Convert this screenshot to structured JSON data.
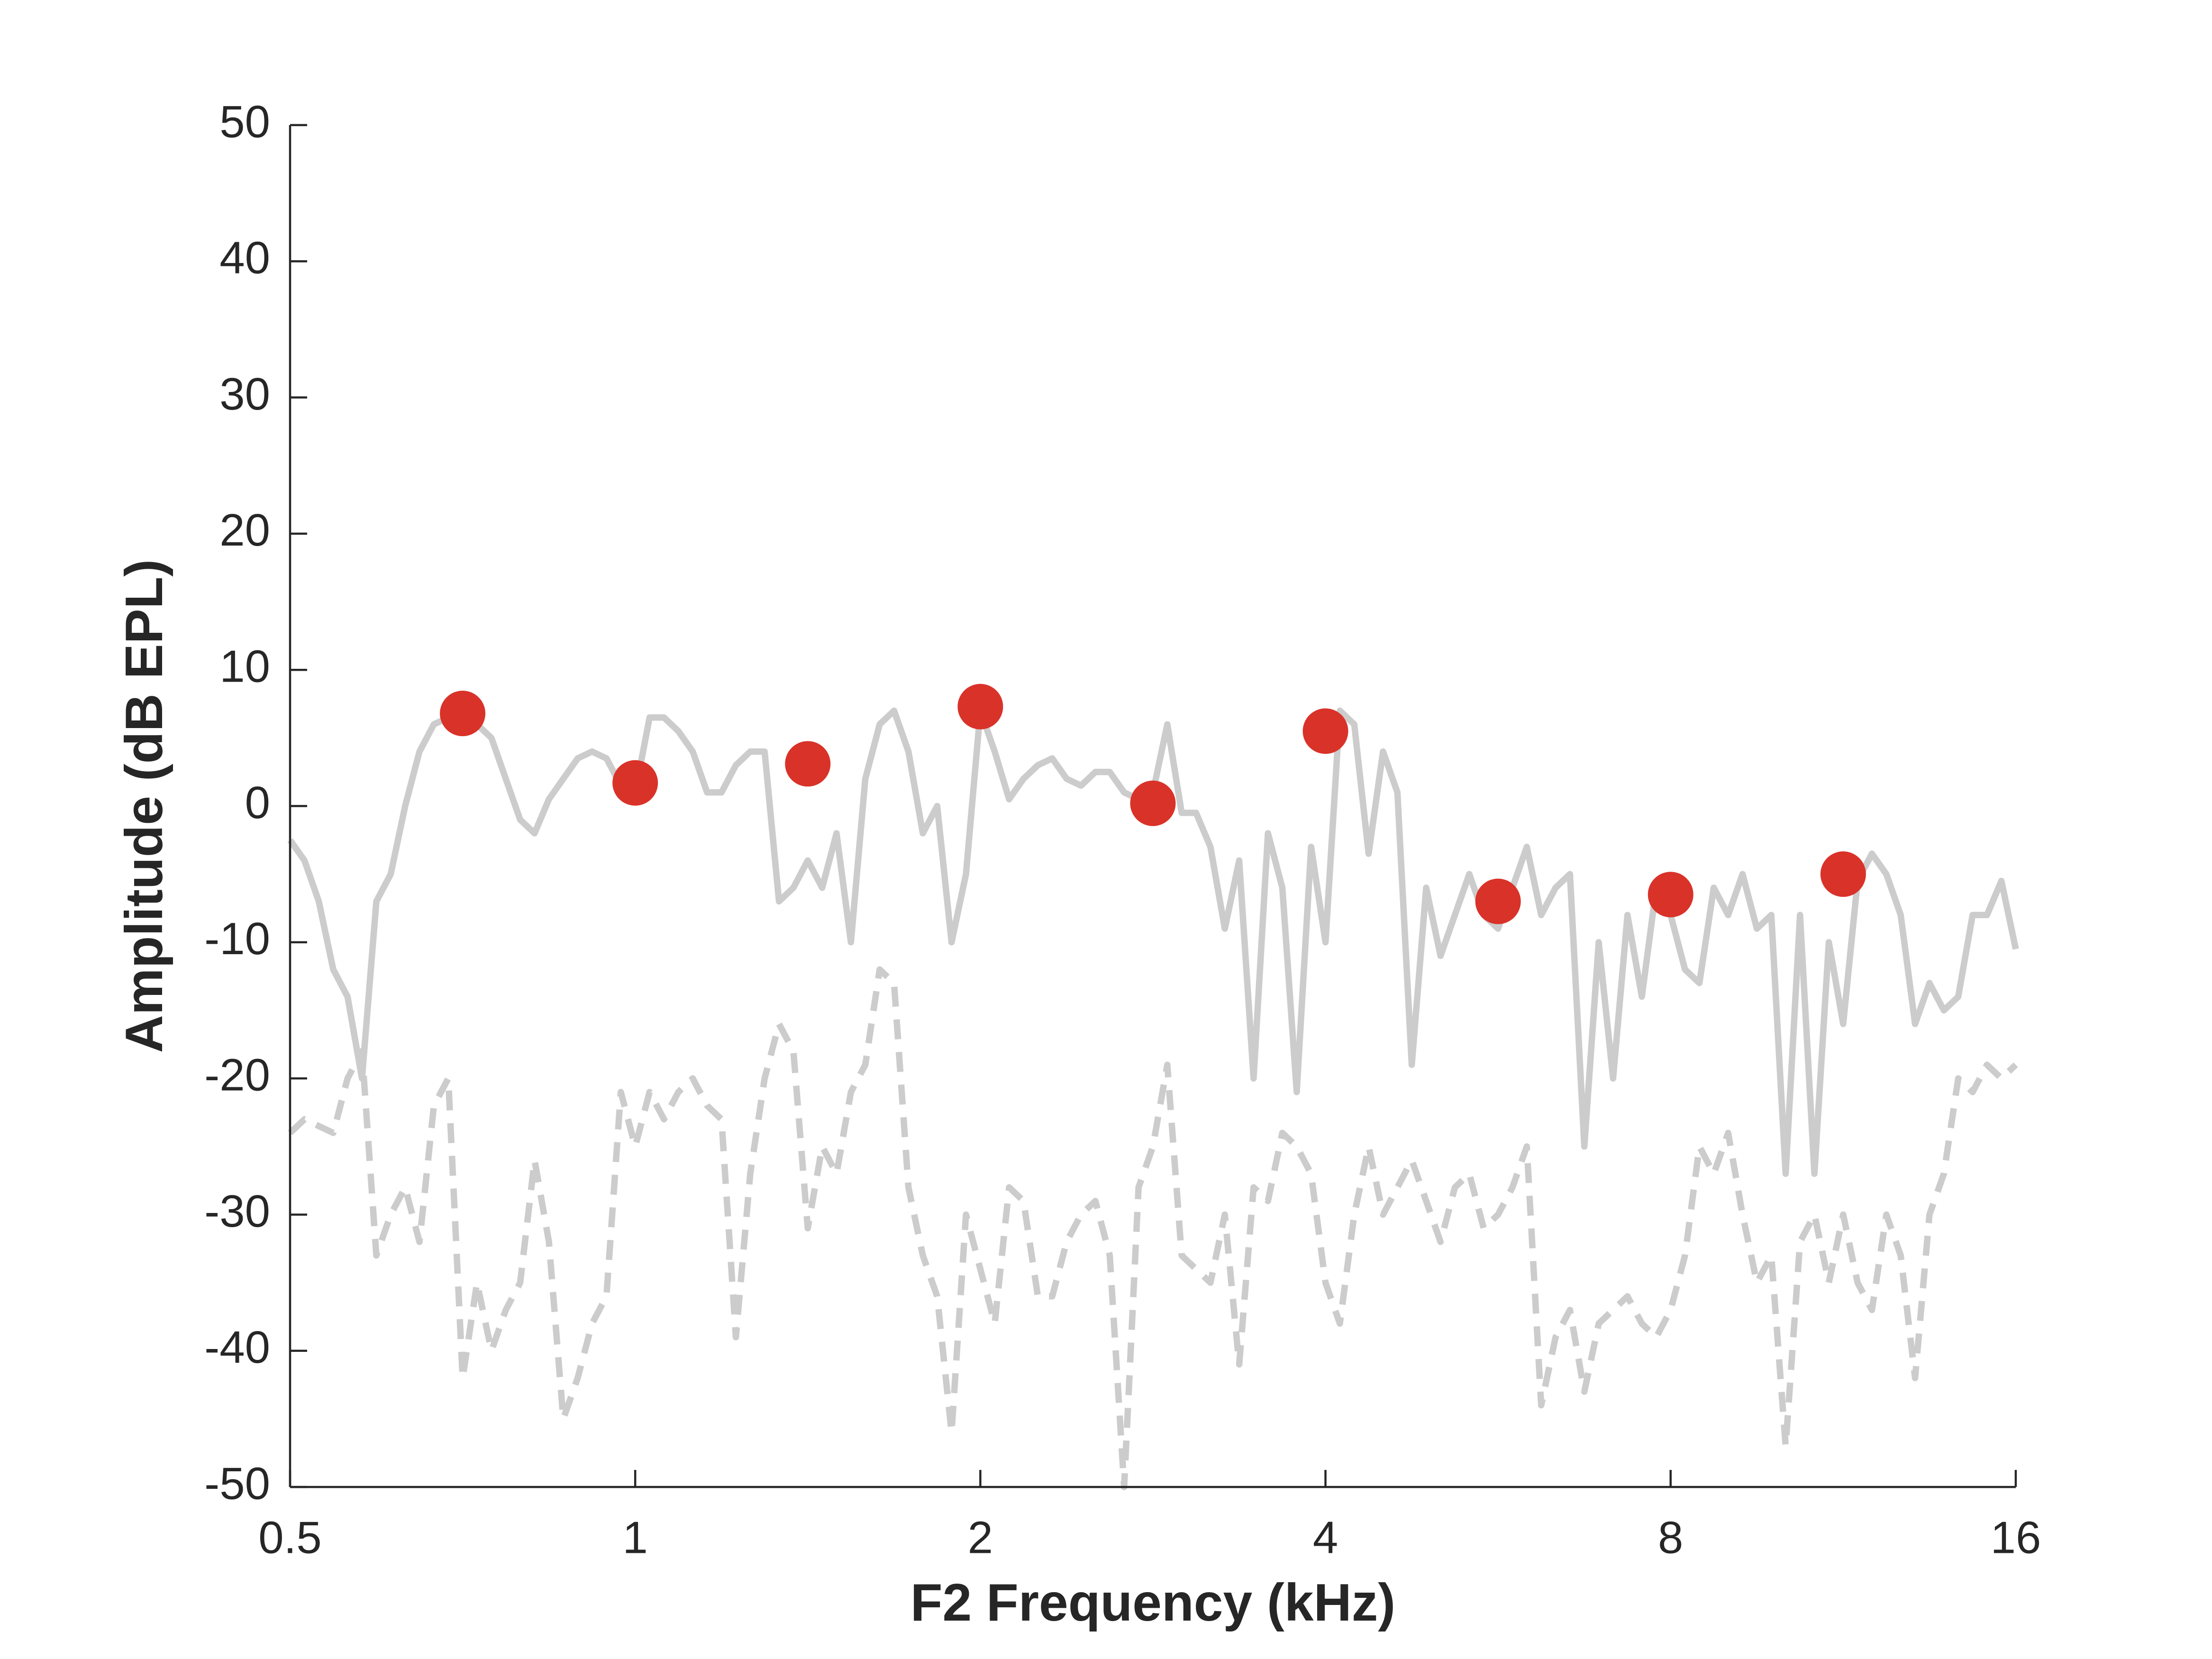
{
  "chart_data": {
    "type": "line",
    "xlabel": "F2 Frequency (kHz)",
    "ylabel": "Amplitude (dB EPL)",
    "xscale": "log",
    "xlim": [
      0.5,
      16
    ],
    "ylim": [
      -50,
      50
    ],
    "xticks": [
      0.5,
      1,
      2,
      4,
      8,
      16
    ],
    "yticks": [
      -50,
      -40,
      -30,
      -20,
      -10,
      0,
      10,
      20,
      30,
      40,
      50
    ],
    "x": [
      0.5,
      0.5147,
      0.5297,
      0.5453,
      0.5612,
      0.5777,
      0.5946,
      0.612,
      0.63,
      0.6484,
      0.6674,
      0.687,
      0.7071,
      0.7278,
      0.7492,
      0.7711,
      0.7937,
      0.817,
      0.8409,
      0.8655,
      0.8909,
      0.917,
      0.9439,
      0.9715,
      1,
      1.0293,
      1.0595,
      1.0905,
      1.1225,
      1.1554,
      1.1892,
      1.2241,
      1.2599,
      1.2968,
      1.3348,
      1.374,
      1.4142,
      1.4557,
      1.4983,
      1.5422,
      1.5874,
      1.6339,
      1.6818,
      1.7311,
      1.7818,
      1.834,
      1.8877,
      1.9431,
      2,
      2.0586,
      2.119,
      2.181,
      2.245,
      2.3108,
      2.3784,
      2.4482,
      2.5198,
      2.5936,
      2.6696,
      2.748,
      2.8284,
      2.9114,
      2.9966,
      3.0844,
      3.1748,
      3.2678,
      3.3636,
      3.4622,
      3.5636,
      3.668,
      3.7754,
      3.8862,
      4,
      4.1172,
      4.238,
      4.362,
      4.49,
      4.6216,
      4.7568,
      4.8964,
      5.0396,
      5.1872,
      5.3392,
      5.496,
      5.6568,
      5.8228,
      5.9932,
      6.1688,
      6.3496,
      6.5356,
      6.7272,
      6.9244,
      7.1272,
      7.336,
      7.5508,
      7.7724,
      8,
      8.2344,
      8.476,
      8.724,
      8.98,
      9.2432,
      9.5136,
      9.7928,
      10.0792,
      10.3744,
      10.6784,
      10.992,
      11.3136,
      11.6456,
      11.9864,
      12.3376,
      12.6992,
      13.0712,
      13.4544,
      13.8488,
      14.2544,
      14.672,
      15.1016,
      15.5448,
      16
    ],
    "series": [
      {
        "color": "#cccccc",
        "style": "solid",
        "values": [
          -2.5,
          -4,
          -7,
          -12,
          -14,
          -20,
          -7,
          -5,
          0,
          4,
          6,
          6.5,
          6.8,
          6,
          5,
          2,
          -1,
          -2,
          0.5,
          2,
          3.5,
          4,
          3.5,
          1.5,
          1,
          6.5,
          6.5,
          5.5,
          4,
          1,
          1,
          3,
          4,
          4,
          -7,
          -6,
          -4,
          -6,
          -2,
          -10,
          2,
          6,
          7,
          4,
          -2,
          0,
          -10,
          -5,
          7,
          4,
          0.5,
          2,
          3,
          3.5,
          2,
          1.5,
          2.5,
          2.5,
          1,
          0.5,
          1,
          6,
          -0.5,
          -0.5,
          -3,
          -9,
          -4,
          -20,
          -2,
          -6,
          -21,
          -3,
          -10,
          7,
          6,
          -3.5,
          4,
          1,
          -19,
          -6,
          -11,
          -8,
          -5,
          -8,
          -9,
          -6,
          -3,
          -8,
          -6,
          -5,
          -25,
          -10,
          -20,
          -8,
          -14,
          -6,
          -8,
          -12,
          -13,
          -6,
          -8,
          -5,
          -9,
          -8,
          -27,
          -8,
          -27,
          -10,
          -16,
          -5.5,
          -3.5,
          -5,
          -8,
          -16,
          -13,
          -15,
          -14,
          -8,
          -8,
          -5.5,
          -10.5
        ]
      },
      {
        "color": "#cccccc",
        "style": "dashed",
        "values": [
          -24,
          -23,
          -23.5,
          -24,
          -20,
          -18,
          -33,
          -30,
          -28,
          -32,
          -22,
          -20,
          -42,
          -35,
          -40,
          -37,
          -35,
          -26,
          -32,
          -45,
          -42,
          -38,
          -36,
          -21,
          -25,
          -21,
          -23,
          -21,
          -20,
          -22,
          -23,
          -39,
          -27,
          -20,
          -16,
          -18,
          -31,
          -25,
          -27,
          -21,
          -19,
          -12,
          -13,
          -28,
          -33,
          -36,
          -46,
          -30,
          -34,
          -38,
          -28,
          -29,
          -36,
          -36,
          -32,
          -30,
          -29,
          -33,
          -50,
          -28,
          -25,
          -19,
          -33,
          -34,
          -35,
          -30,
          -41,
          -28,
          -29,
          -24,
          -25,
          -27,
          -35,
          -38,
          -30,
          -25,
          -30,
          -28,
          -26,
          -29,
          -32,
          -28,
          -27,
          -31,
          -30,
          -28,
          -25,
          -44,
          -39,
          -37,
          -43,
          -38,
          -37,
          -36,
          -38,
          -39,
          -37,
          -33,
          -25,
          -27,
          -24,
          -30,
          -35,
          -33,
          -47,
          -32,
          -30,
          -35,
          -30,
          -35,
          -37,
          -30,
          -33,
          -42,
          -30,
          -27,
          -20,
          -21,
          -19,
          -20,
          -19
        ]
      },
      {
        "color": "#d93229",
        "marker": "circle",
        "x": [
          0.7071,
          1,
          1.4142,
          2,
          2.8284,
          4,
          5.6568,
          8,
          11.3136
        ],
        "values": [
          6.8,
          1.7,
          3.1,
          7.3,
          0.2,
          5.5,
          -7,
          -6.5,
          -5
        ]
      }
    ]
  }
}
